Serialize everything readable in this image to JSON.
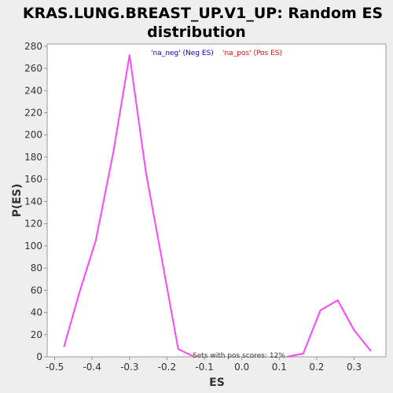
{
  "chart_data": {
    "type": "line",
    "title_line1": "KRAS.LUNG.BREAST_UP.V1_UP: Random ES",
    "title_line2": "distribution",
    "xlabel": "ES",
    "ylabel": "P(ES)",
    "xlim": [
      -0.52,
      0.385
    ],
    "ylim": [
      0,
      282
    ],
    "x_ticks": [
      -0.5,
      -0.4,
      -0.3,
      -0.2,
      -0.1,
      0.0,
      0.1,
      0.2,
      0.3
    ],
    "x_tick_labels": [
      "-0.5",
      "-0.4",
      "-0.3",
      "-0.2",
      "-0.1",
      "0.0",
      "0.1",
      "0.2",
      "0.3"
    ],
    "y_ticks": [
      0,
      20,
      40,
      60,
      80,
      100,
      120,
      140,
      160,
      180,
      200,
      220,
      240,
      260,
      280
    ],
    "y_tick_labels": [
      "0",
      "20",
      "40",
      "60",
      "80",
      "100",
      "120",
      "140",
      "160",
      "180",
      "200",
      "220",
      "240",
      "260",
      "280"
    ],
    "grid": false,
    "legend_position": "top-center",
    "legend": [
      {
        "label": "'na_neg' (Neg ES)",
        "color": "#0000ff"
      },
      {
        "label": "'na_pos' (Pos ES)",
        "color": "#ff0000"
      }
    ],
    "series": [
      {
        "color": "#ff44ff",
        "x": [
          -0.475,
          -0.434,
          -0.39,
          -0.343,
          -0.3,
          -0.256,
          -0.212,
          -0.17,
          -0.127
        ],
        "y": [
          9,
          58,
          105,
          185,
          272,
          166,
          85,
          7,
          0
        ]
      },
      {
        "color": "#ff44ff",
        "x": [
          0.12,
          0.164,
          0.21,
          0.256,
          0.3,
          0.345
        ],
        "y": [
          0,
          3,
          42,
          51,
          24,
          5
        ]
      }
    ],
    "annotation": "Sets with pos scores: 12%"
  }
}
